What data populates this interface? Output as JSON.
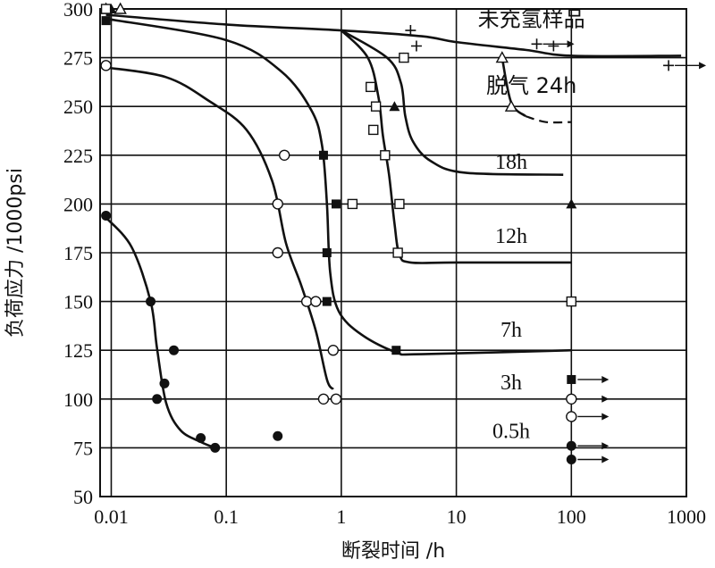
{
  "chart_data": {
    "type": "scatter",
    "xlabel": "断裂时间 /h",
    "ylabel": "负荷应力 /1000psi",
    "x_scale": "log",
    "xlim": [
      0.008,
      1000
    ],
    "ylim": [
      50,
      300
    ],
    "x_ticks": [
      {
        "value": 0.01,
        "label": "0.01"
      },
      {
        "value": 0.1,
        "label": "0.1"
      },
      {
        "value": 1,
        "label": "1"
      },
      {
        "value": 10,
        "label": "10"
      },
      {
        "value": 100,
        "label": "100"
      },
      {
        "value": 1000,
        "label": "1000"
      }
    ],
    "y_ticks": [
      {
        "value": 50,
        "label": "50"
      },
      {
        "value": 75,
        "label": "75"
      },
      {
        "value": 100,
        "label": "100"
      },
      {
        "value": 125,
        "label": "125"
      },
      {
        "value": 150,
        "label": "150"
      },
      {
        "value": 175,
        "label": "175"
      },
      {
        "value": 200,
        "label": "200"
      },
      {
        "value": 225,
        "label": "225"
      },
      {
        "value": 250,
        "label": "250"
      },
      {
        "value": 275,
        "label": "275"
      },
      {
        "value": 300,
        "label": "300"
      }
    ],
    "grid": true,
    "curve_labels": [
      {
        "text": "未充氢样品",
        "x": 45,
        "y": 291
      },
      {
        "text": "脱气 24h",
        "x": 45,
        "y": 257
      },
      {
        "text": "18h",
        "x": 30,
        "y": 218
      },
      {
        "text": "12h",
        "x": 30,
        "y": 180
      },
      {
        "text": "7h",
        "x": 30,
        "y": 132
      },
      {
        "text": "3h",
        "x": 30,
        "y": 105
      },
      {
        "text": "0.5h",
        "x": 30,
        "y": 80
      }
    ],
    "series": [
      {
        "name": "未充氢样品",
        "marker": "plus",
        "points": [
          [
            4.0,
            289
          ],
          [
            4.5,
            281
          ],
          [
            50,
            282
          ],
          [
            70,
            281
          ],
          [
            700,
            271
          ]
        ],
        "curve": [
          [
            0.009,
            297
          ],
          [
            0.1,
            292
          ],
          [
            1,
            289
          ],
          [
            5,
            286
          ],
          [
            10,
            283
          ],
          [
            40,
            279
          ],
          [
            100,
            276
          ],
          [
            900,
            276
          ]
        ]
      },
      {
        "name": "脱气 24h",
        "marker": "triangle-open",
        "points": [
          [
            0.009,
            300
          ],
          [
            0.012,
            300
          ],
          [
            25,
            275
          ],
          [
            30,
            250
          ]
        ],
        "curve": [
          [
            25,
            275
          ],
          [
            30,
            252
          ],
          [
            40,
            245
          ]
        ],
        "dashed": [
          [
            40,
            245
          ],
          [
            60,
            242
          ],
          [
            100,
            242
          ]
        ]
      },
      {
        "name": "18h",
        "marker": "triangle-filled",
        "points": [
          [
            0.01,
            300
          ],
          [
            3.5,
            275
          ],
          [
            2.9,
            250
          ],
          [
            100,
            200
          ]
        ],
        "curve": [
          [
            1,
            289
          ],
          [
            2.5,
            275
          ],
          [
            3.3,
            262
          ],
          [
            3.6,
            245
          ],
          [
            4.2,
            232
          ],
          [
            6,
            222
          ],
          [
            12,
            216
          ],
          [
            85,
            215
          ]
        ]
      },
      {
        "name": "12h",
        "marker": "square-open",
        "points": [
          [
            0.009,
            300
          ],
          [
            3.5,
            275
          ],
          [
            1.8,
            260
          ],
          [
            2.0,
            250
          ],
          [
            1.9,
            238
          ],
          [
            2.4,
            225
          ],
          [
            1.25,
            200
          ],
          [
            3.2,
            200
          ],
          [
            3.1,
            175
          ],
          [
            100,
            150
          ]
        ],
        "curve": [
          [
            1,
            289
          ],
          [
            1.7,
            275
          ],
          [
            2.1,
            255
          ],
          [
            2.3,
            235
          ],
          [
            2.6,
            215
          ],
          [
            2.9,
            190
          ],
          [
            3.2,
            174
          ],
          [
            4,
            170
          ],
          [
            10,
            170
          ],
          [
            100,
            170
          ]
        ]
      },
      {
        "name": "7h",
        "marker": "square-filled",
        "points": [
          [
            0.009,
            294
          ],
          [
            0.7,
            225
          ],
          [
            0.9,
            200
          ],
          [
            0.75,
            175
          ],
          [
            0.75,
            150
          ],
          [
            3.0,
            125
          ],
          [
            100,
            110
          ]
        ],
        "curve": [
          [
            0.009,
            295
          ],
          [
            0.1,
            284
          ],
          [
            0.3,
            268
          ],
          [
            0.55,
            248
          ],
          [
            0.68,
            230
          ],
          [
            0.75,
            200
          ],
          [
            0.8,
            165
          ],
          [
            0.95,
            145
          ],
          [
            1.5,
            133
          ],
          [
            3,
            124
          ],
          [
            5,
            123
          ],
          [
            100,
            125
          ]
        ]
      },
      {
        "name": "3h",
        "marker": "circle-open",
        "points": [
          [
            0.009,
            271
          ],
          [
            0.32,
            225
          ],
          [
            0.28,
            200
          ],
          [
            0.28,
            175
          ],
          [
            0.5,
            150
          ],
          [
            0.6,
            150
          ],
          [
            0.85,
            125
          ],
          [
            0.7,
            100
          ],
          [
            0.9,
            100
          ],
          [
            100,
            100
          ],
          [
            100,
            91
          ]
        ],
        "curve": [
          [
            0.009,
            270
          ],
          [
            0.03,
            265
          ],
          [
            0.07,
            253
          ],
          [
            0.15,
            238
          ],
          [
            0.25,
            212
          ],
          [
            0.33,
            180
          ],
          [
            0.45,
            158
          ],
          [
            0.6,
            135
          ],
          [
            0.75,
            110
          ],
          [
            0.85,
            105
          ]
        ]
      },
      {
        "name": "0.5h",
        "marker": "circle-filled",
        "points": [
          [
            0.009,
            194
          ],
          [
            0.022,
            150
          ],
          [
            0.035,
            125
          ],
          [
            0.029,
            108
          ],
          [
            0.025,
            100
          ],
          [
            0.06,
            80
          ],
          [
            0.08,
            75
          ],
          [
            0.28,
            81
          ],
          [
            100,
            76
          ],
          [
            100,
            69
          ]
        ],
        "curve": [
          [
            0.009,
            193
          ],
          [
            0.015,
            178
          ],
          [
            0.022,
            150
          ],
          [
            0.025,
            126
          ],
          [
            0.03,
            98
          ],
          [
            0.04,
            84
          ],
          [
            0.06,
            78
          ],
          [
            0.08,
            75
          ]
        ]
      }
    ],
    "runouts": [
      {
        "x": 100,
        "y": 110,
        "marker": "square-filled"
      },
      {
        "x": 100,
        "y": 100,
        "marker": "circle-open"
      },
      {
        "x": 100,
        "y": 91,
        "marker": "circle-open"
      },
      {
        "x": 100,
        "y": 76,
        "marker": "circle-filled"
      },
      {
        "x": 100,
        "y": 69,
        "marker": "circle-filled"
      },
      {
        "x": 50,
        "y": 282,
        "marker": "plus"
      },
      {
        "x": 700,
        "y": 271,
        "marker": "plus"
      }
    ]
  }
}
